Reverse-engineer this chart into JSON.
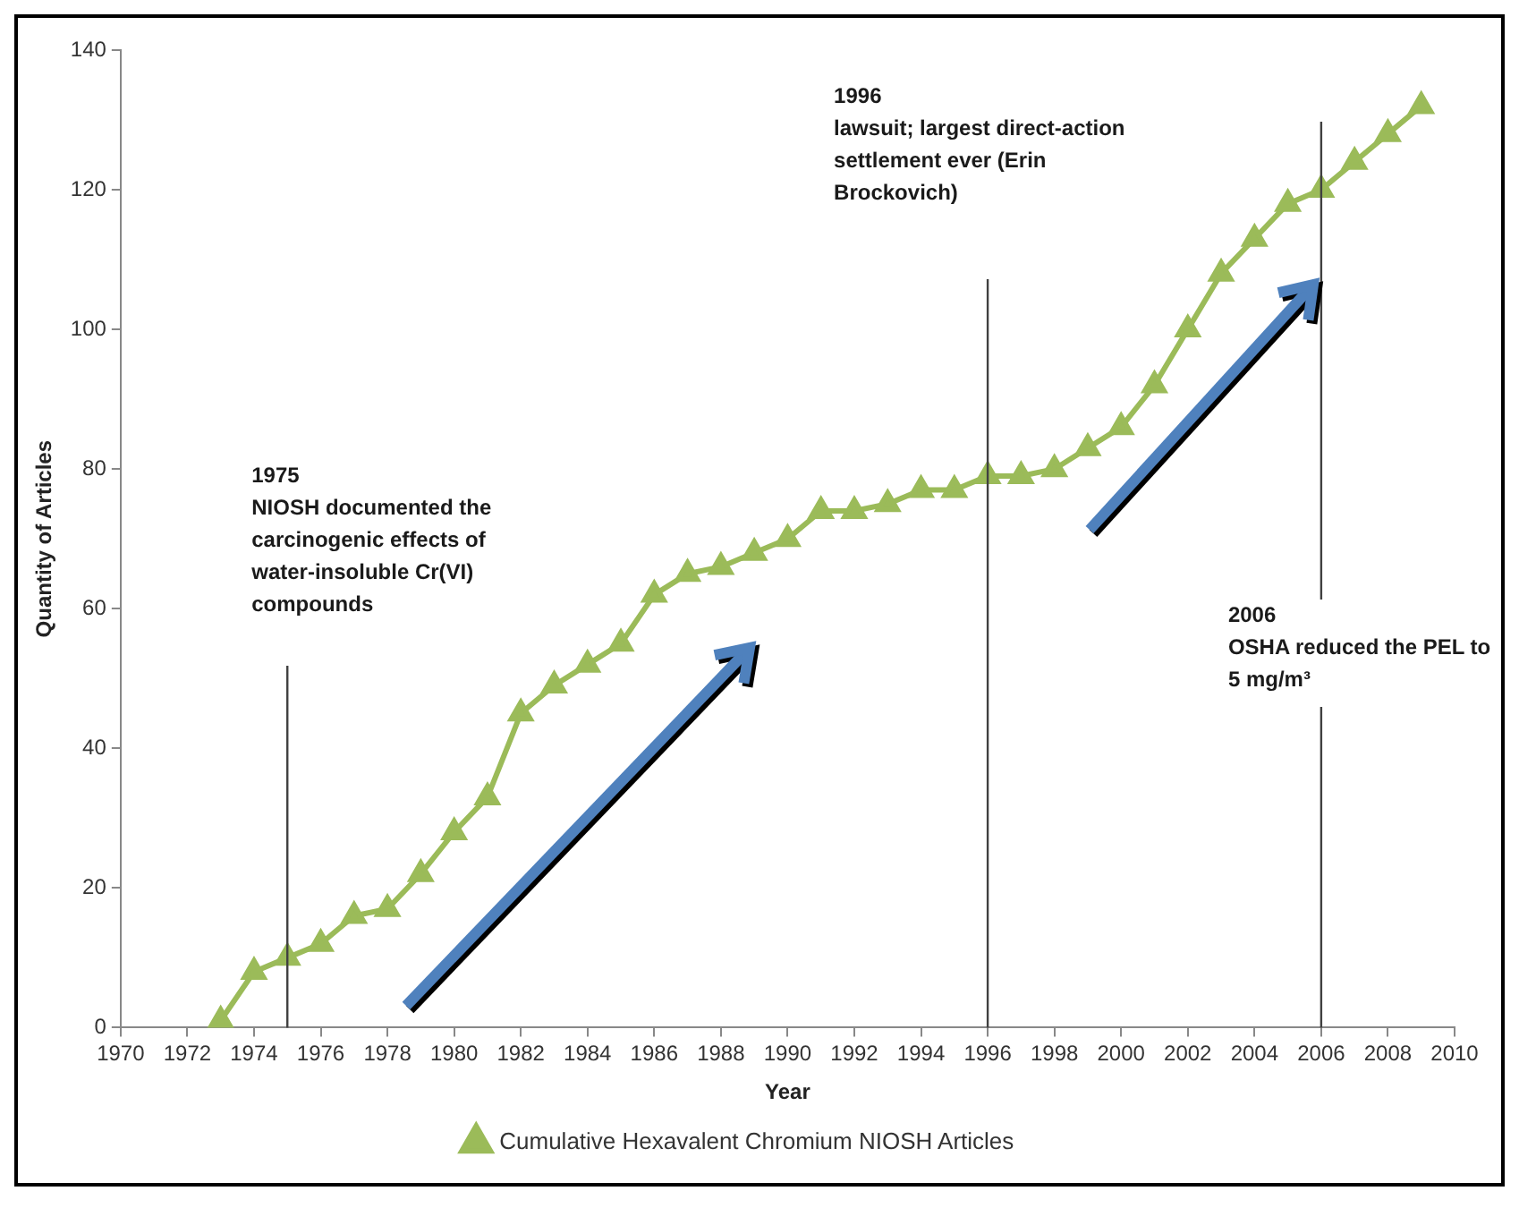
{
  "chart_data": {
    "type": "line",
    "xlabel": "Year",
    "ylabel": "Quantity of Articles",
    "x": [
      1973,
      1974,
      1975,
      1976,
      1977,
      1978,
      1979,
      1980,
      1981,
      1982,
      1983,
      1984,
      1985,
      1986,
      1987,
      1988,
      1989,
      1990,
      1991,
      1992,
      1993,
      1994,
      1995,
      1996,
      1997,
      1998,
      1999,
      2000,
      2001,
      2002,
      2003,
      2004,
      2005,
      2006,
      2007,
      2008,
      2009
    ],
    "series": [
      {
        "name": "Cumulative Hexavalent Chromium NIOSH Articles",
        "color": "#9bbb59",
        "values": [
          1,
          8,
          10,
          12,
          16,
          17,
          22,
          28,
          33,
          45,
          49,
          52,
          55,
          62,
          65,
          66,
          68,
          70,
          74,
          74,
          75,
          77,
          77,
          79,
          79,
          80,
          83,
          86,
          92,
          100,
          108,
          113,
          118,
          120,
          124,
          128,
          132
        ]
      }
    ],
    "xlim": [
      1970,
      2010
    ],
    "xticks": [
      1970,
      1972,
      1974,
      1976,
      1978,
      1980,
      1982,
      1984,
      1986,
      1988,
      1990,
      1992,
      1994,
      1996,
      1998,
      2000,
      2002,
      2004,
      2006,
      2008,
      2010
    ],
    "ylim": [
      0,
      140
    ],
    "yticks": [
      0,
      20,
      40,
      60,
      80,
      100,
      120,
      140
    ],
    "grid": false,
    "legend": "bottom",
    "marker": "triangle",
    "line_style": "solid",
    "ref_lines": [
      {
        "axis": "x",
        "value": 1975,
        "label": "1975 NIOSH documented the carcinogenic effects of water-insoluble Cr(VI) compounds",
        "color": "#404040"
      },
      {
        "axis": "x",
        "value": 1996,
        "label": "1996 lawsuit; largest direct-action settlement ever (Erin Brockovich)",
        "color": "#404040"
      },
      {
        "axis": "x",
        "value": 2006,
        "label": "2006 OSHA reduced the PEL to 5 mg/m³",
        "color": "#404040"
      }
    ]
  }
}
